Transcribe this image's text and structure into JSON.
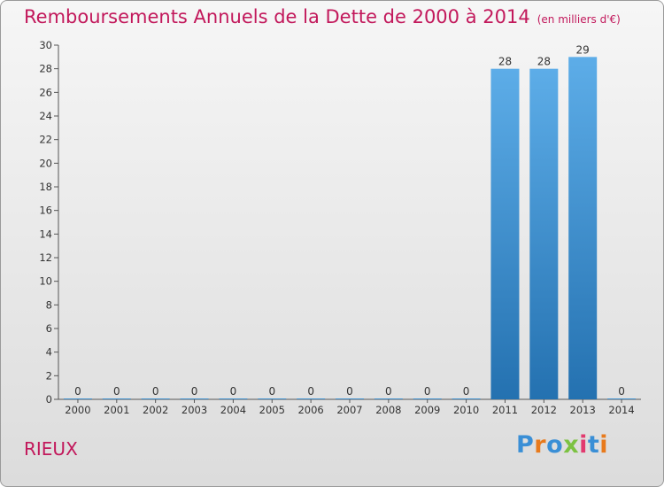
{
  "header": {
    "title": "Remboursements Annuels de la Dette de 2000 à 2014",
    "subtitle": "(en milliers d'€)"
  },
  "footer": {
    "place": "RIEUX",
    "logo": "Proxiti"
  },
  "colors": {
    "title": "#c2185b",
    "bar_top": "#5dade8",
    "bar_bottom": "#2471b0"
  },
  "chart_data": {
    "type": "bar",
    "categories": [
      "2000",
      "2001",
      "2002",
      "2003",
      "2004",
      "2005",
      "2006",
      "2007",
      "2008",
      "2009",
      "2010",
      "2011",
      "2012",
      "2013",
      "2014"
    ],
    "values": [
      0,
      0,
      0,
      0,
      0,
      0,
      0,
      0,
      0,
      0,
      0,
      28,
      28,
      29,
      0
    ],
    "value_labels": [
      "0",
      "0",
      "0",
      "0",
      "0",
      "0",
      "0",
      "0",
      "0",
      "0",
      "0",
      "28",
      "28",
      "29",
      "0"
    ],
    "yticks": [
      0,
      2,
      4,
      6,
      8,
      10,
      12,
      14,
      16,
      18,
      20,
      22,
      24,
      26,
      28,
      30
    ],
    "ylim": [
      0,
      30
    ],
    "grid": false
  }
}
